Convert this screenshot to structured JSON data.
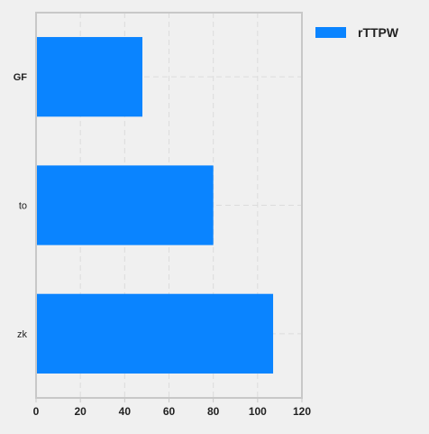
{
  "chart_data": {
    "type": "bar",
    "orientation": "horizontal",
    "categories": [
      "GF",
      "to",
      "zk"
    ],
    "series": [
      {
        "name": "rTTPW",
        "values": [
          48,
          80,
          107
        ]
      }
    ],
    "xlim": [
      0,
      120
    ],
    "xticks": [
      0,
      20,
      40,
      60,
      80,
      100,
      120
    ],
    "title": "",
    "xlabel": "",
    "ylabel": "",
    "grid": true,
    "legend_position": "top-right-outside",
    "colors": {
      "bar": "#0a84ff",
      "background": "#f0f0f0",
      "axes_border": "#c8c8c8",
      "grid": "#dcdcdc",
      "text": "#222222"
    }
  }
}
